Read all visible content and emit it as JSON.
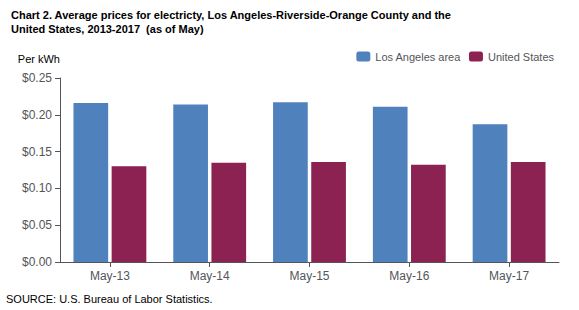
{
  "chart_data": {
    "type": "bar",
    "title": "Chart 2. Average prices for electricty, Los Angeles-Riverside-Orange County and the",
    "subtitle": "United States, 2013-2017  (as of May)",
    "ylabel": "Per kWh",
    "annotations": [
      "SOURCE: U.S. Bureau of Labor Statistics."
    ],
    "categories": [
      "May-13",
      "May-14",
      "May-15",
      "May-16",
      "May-17"
    ],
    "series": [
      {
        "name": "Los Angeles area",
        "color": "#4F81BD",
        "values": [
          0.216,
          0.214,
          0.217,
          0.211,
          0.187
        ]
      },
      {
        "name": "United States",
        "color": "#8B2252",
        "values": [
          0.13,
          0.135,
          0.136,
          0.132,
          0.136
        ]
      }
    ],
    "ylim": [
      0,
      0.25
    ],
    "yticks": [
      {
        "value": 0.0,
        "label": "$0.00"
      },
      {
        "value": 0.05,
        "label": "$0.05"
      },
      {
        "value": 0.1,
        "label": "$0.10"
      },
      {
        "value": 0.15,
        "label": "$0.15"
      },
      {
        "value": 0.2,
        "label": "$0.20"
      },
      {
        "value": 0.25,
        "label": "$0.25"
      }
    ],
    "grid": false,
    "legend": "upper right"
  }
}
